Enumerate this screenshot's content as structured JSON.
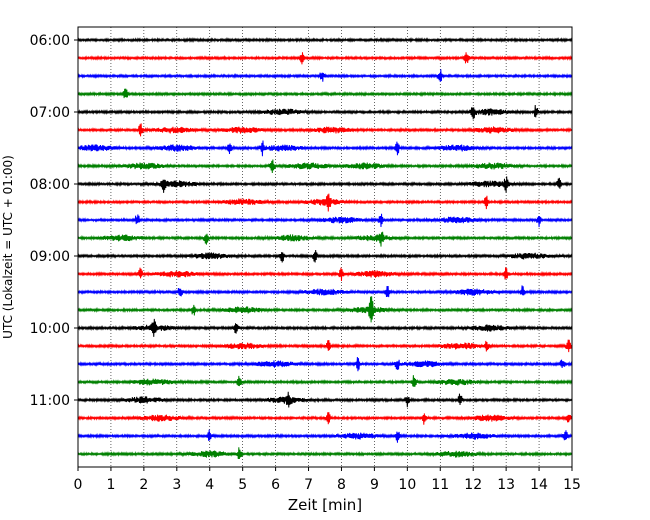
{
  "chart_data": {
    "type": "line",
    "title": "",
    "xlabel": "Zeit  [min]",
    "ylabel": "UTC (Lokalzeit = UTC + 01:00)",
    "xlim": [
      0,
      15
    ],
    "x_ticks": [
      "0",
      "1",
      "2",
      "3",
      "4",
      "5",
      "6",
      "7",
      "8",
      "9",
      "10",
      "11",
      "12",
      "13",
      "14",
      "15"
    ],
    "y_ticks": [
      "06:00",
      "07:00",
      "08:00",
      "09:00",
      "10:00",
      "11:00"
    ],
    "grid": "vertical dotted",
    "trace_colors": [
      "#000000",
      "#ff0000",
      "#0000ff",
      "#008000"
    ],
    "traces": [
      {
        "start": "06:00",
        "spikes": [],
        "bursts": []
      },
      {
        "start": "06:15",
        "spikes": [
          6.8,
          11.8
        ],
        "bursts": []
      },
      {
        "start": "06:30",
        "spikes": [
          7.4,
          11.0
        ],
        "bursts": []
      },
      {
        "start": "06:45",
        "spikes": [
          1.45
        ],
        "bursts": []
      },
      {
        "start": "07:00",
        "spikes": [
          12.0,
          13.9
        ],
        "bursts": [
          6.2,
          12.5
        ]
      },
      {
        "start": "07:15",
        "spikes": [
          1.9
        ],
        "bursts": [
          2.9,
          5.0,
          7.7,
          12.6
        ]
      },
      {
        "start": "07:30",
        "spikes": [
          4.6,
          5.6,
          9.7
        ],
        "bursts": [
          0.5,
          3.0,
          6.2,
          11.5
        ]
      },
      {
        "start": "07:45",
        "spikes": [
          5.9
        ],
        "bursts": [
          2.0,
          7.0,
          8.7,
          12.6
        ]
      },
      {
        "start": "08:00",
        "spikes": [
          2.6,
          13.0,
          14.6
        ],
        "bursts": [
          3.0,
          12.5
        ]
      },
      {
        "start": "08:15",
        "spikes": [
          7.6,
          12.4
        ],
        "bursts": [
          5.0,
          7.5
        ]
      },
      {
        "start": "08:30",
        "spikes": [
          1.8,
          9.2,
          14.0
        ],
        "bursts": [
          8.0,
          11.5
        ]
      },
      {
        "start": "08:45",
        "spikes": [
          3.9,
          9.2
        ],
        "bursts": [
          1.3,
          6.5,
          9.0
        ]
      },
      {
        "start": "09:00",
        "spikes": [
          6.2,
          7.2
        ],
        "bursts": [
          4.0,
          13.7
        ]
      },
      {
        "start": "09:15",
        "spikes": [
          1.9,
          8.0,
          13.0
        ],
        "bursts": [
          3.0,
          9.0
        ]
      },
      {
        "start": "09:30",
        "spikes": [
          3.1,
          9.4,
          13.5
        ],
        "bursts": [
          7.5,
          12.0
        ]
      },
      {
        "start": "09:45",
        "spikes": [
          3.5,
          8.9,
          8.9
        ],
        "bursts": [
          5.0,
          8.8
        ]
      },
      {
        "start": "10:00",
        "spikes": [
          2.3,
          4.8
        ],
        "bursts": [
          2.3,
          12.5
        ]
      },
      {
        "start": "10:15",
        "spikes": [
          7.6,
          12.4,
          14.9
        ],
        "bursts": [
          11.6,
          5.0
        ]
      },
      {
        "start": "10:30",
        "spikes": [
          8.5,
          9.7,
          14.7
        ],
        "bursts": [
          6.0,
          10.5
        ]
      },
      {
        "start": "10:45",
        "spikes": [
          4.9,
          10.2
        ],
        "bursts": [
          2.3,
          11.5
        ]
      },
      {
        "start": "11:00",
        "spikes": [
          6.4,
          10.0,
          11.6
        ],
        "bursts": [
          6.3,
          2.0
        ]
      },
      {
        "start": "11:15",
        "spikes": [
          7.6,
          10.5,
          14.9
        ],
        "bursts": [
          2.5,
          12.5
        ]
      },
      {
        "start": "11:30",
        "spikes": [
          4.0,
          9.7,
          14.8
        ],
        "bursts": [
          8.5,
          12.0
        ]
      },
      {
        "start": "11:45",
        "spikes": [
          4.9
        ],
        "bursts": [
          4.0,
          11.5
        ]
      }
    ]
  }
}
